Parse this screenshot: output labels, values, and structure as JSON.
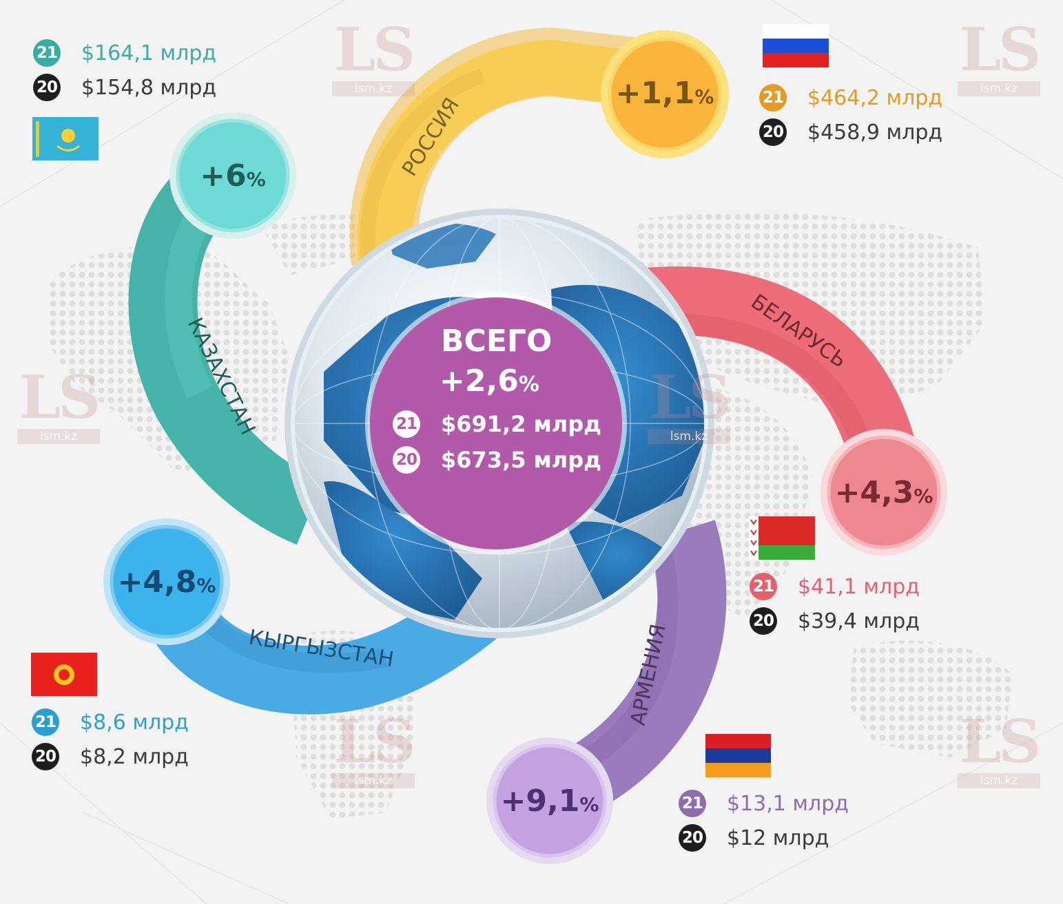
{
  "total": {
    "title": "ВСЕГО",
    "change": "+2,6",
    "unit": "%",
    "y21_badge": "21",
    "y21_value": "$691,2 млрд",
    "y20_badge": "20",
    "y20_value": "$673,5 млрд"
  },
  "countries": {
    "russia": {
      "name": "РОССИЯ",
      "change": "+1,1",
      "unit": "%",
      "y21_badge": "21",
      "y21_value": "$464,2 млрд",
      "y20_badge": "20",
      "y20_value": "$458,9 млрд",
      "color": "#f6c13e",
      "flag": "russia-flag"
    },
    "kazakhstan": {
      "name": "КАЗАХСТАН",
      "change": "+6",
      "unit": "%",
      "y21_badge": "21",
      "y21_value": "$164,1 млрд",
      "y20_badge": "20",
      "y20_value": "$154,8 млрд",
      "color": "#3aada3",
      "flag": "kazakhstan-flag"
    },
    "belarus": {
      "name": "БЕЛАРУСЬ",
      "change": "+4,3",
      "unit": "%",
      "y21_badge": "21",
      "y21_value": "$41,1 млрд",
      "y20_badge": "20",
      "y20_value": "$39,4 млрд",
      "color": "#e65f6b",
      "flag": "belarus-flag"
    },
    "kyrgyzstan": {
      "name": "КЫРГЫЗСТАН",
      "change": "+4,8",
      "unit": "%",
      "y21_badge": "21",
      "y21_value": "$8,6 млрд",
      "y20_badge": "20",
      "y20_value": "$8,2 млрд",
      "color": "#3a9fd6",
      "flag": "kyrgyzstan-flag"
    },
    "armenia": {
      "name": "АРМЕНИЯ",
      "change": "+9,1",
      "unit": "%",
      "y21_badge": "21",
      "y21_value": "$13,1 млрд",
      "y20_badge": "20",
      "y20_value": "$12 млрд",
      "color": "#8f6cb0",
      "flag": "armenia-flag"
    }
  },
  "watermark": {
    "logo": "LS",
    "site": "lsm.kz"
  },
  "colors": {
    "total": "#b25aa9",
    "globe_ocean": "#1f6fb4",
    "background": "#f3f3f3"
  }
}
